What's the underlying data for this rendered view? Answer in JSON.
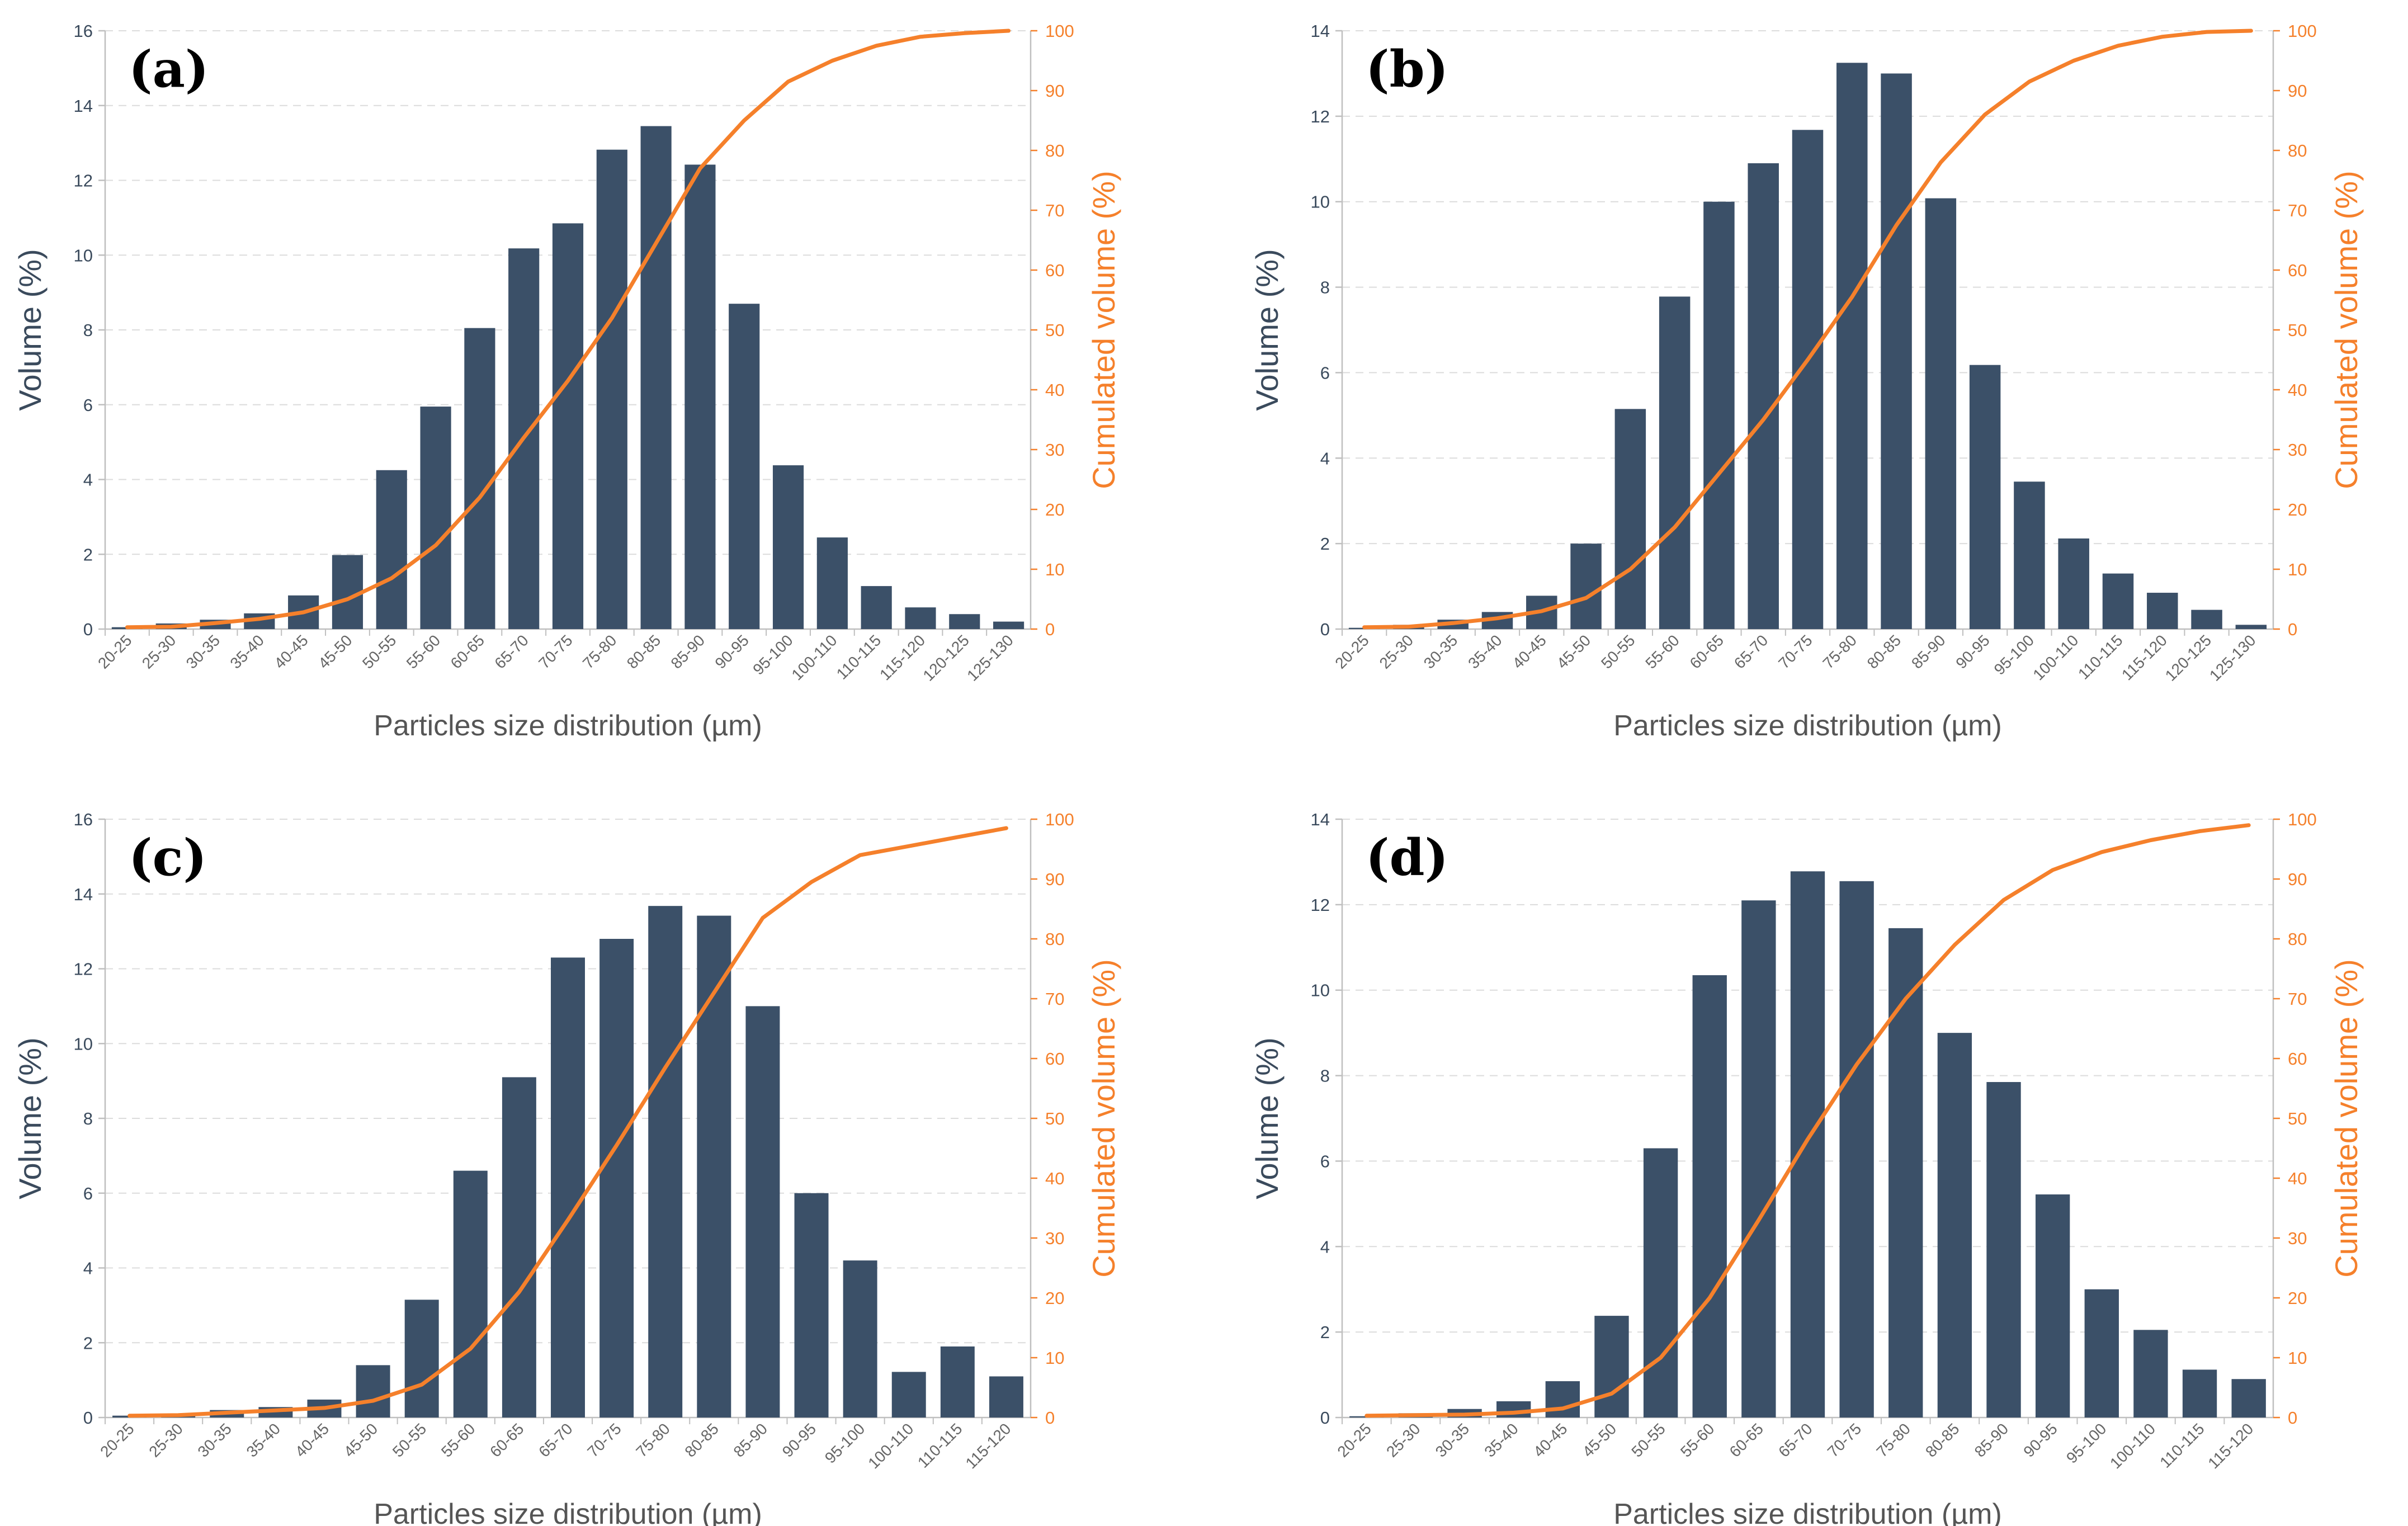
{
  "colors": {
    "bar": "#3b5068",
    "line": "#f5802b",
    "left_axis_text": "#3a4a5c",
    "grid": "#dcdcdc",
    "xlabel_text": "#555555"
  },
  "chart_data": [
    {
      "panel": "(a)",
      "type": "bar",
      "xlabel": "Particles size distribution (µm)",
      "ylabel": "Volume (%)",
      "y2label": "Cumulated volume (%)",
      "ylim": [
        0,
        16
      ],
      "yticks": [
        "0",
        "2",
        "4",
        "6",
        "8",
        "10",
        "12",
        "14",
        "16"
      ],
      "y2lim": [
        0,
        100
      ],
      "y2ticks": [
        "0",
        "10",
        "20",
        "30",
        "40",
        "50",
        "60",
        "70",
        "80",
        "90",
        "100"
      ],
      "categories": [
        "20-25",
        "25-30",
        "30-35",
        "35-40",
        "40-45",
        "45-50",
        "50-55",
        "55-60",
        "60-65",
        "65-70",
        "70-75",
        "75-80",
        "80-85",
        "85-90",
        "90-95",
        "95-100",
        "100-110",
        "110-115",
        "115-120",
        "120-125",
        "125-130"
      ],
      "series": [
        {
          "name": "Volume (%)",
          "axis": "left",
          "type": "bar",
          "values": [
            0.05,
            0.15,
            0.25,
            0.42,
            0.9,
            1.98,
            4.25,
            5.95,
            8.05,
            10.18,
            10.85,
            12.82,
            13.45,
            12.42,
            8.7,
            4.38,
            2.45,
            1.15,
            0.58,
            0.4,
            0.2
          ]
        },
        {
          "name": "Cumulated volume (%)",
          "axis": "right",
          "type": "line",
          "values": [
            0.3,
            0.4,
            1.0,
            1.7,
            2.8,
            5.0,
            8.5,
            14.0,
            22.0,
            32.0,
            41.5,
            52.0,
            64.5,
            77.0,
            85.0,
            91.5,
            95.0,
            97.5,
            99.0,
            99.6,
            100.0
          ]
        }
      ]
    },
    {
      "panel": "(b)",
      "type": "bar",
      "xlabel": "Particles size distribution (µm)",
      "ylabel": "Volume (%)",
      "y2label": "Cumulated volume (%)",
      "ylim": [
        0,
        14
      ],
      "yticks": [
        "0",
        "2",
        "4",
        "6",
        "8",
        "10",
        "12",
        "14"
      ],
      "y2lim": [
        0,
        100
      ],
      "y2ticks": [
        "0",
        "10",
        "20",
        "30",
        "40",
        "50",
        "60",
        "70",
        "80",
        "90",
        "100"
      ],
      "categories": [
        "20-25",
        "25-30",
        "30-35",
        "35-40",
        "40-45",
        "45-50",
        "50-55",
        "55-60",
        "60-65",
        "65-70",
        "70-75",
        "75-80",
        "80-85",
        "85-90",
        "90-95",
        "95-100",
        "100-110",
        "110-115",
        "115-120",
        "120-125",
        "125-130"
      ],
      "series": [
        {
          "name": "Volume (%)",
          "axis": "left",
          "type": "bar",
          "values": [
            0.03,
            0.1,
            0.22,
            0.4,
            0.78,
            2.0,
            5.15,
            7.78,
            10.0,
            10.9,
            11.68,
            13.25,
            13.0,
            10.08,
            6.18,
            3.45,
            2.12,
            1.3,
            0.85,
            0.45,
            0.1
          ]
        },
        {
          "name": "Cumulated volume (%)",
          "axis": "right",
          "type": "line",
          "values": [
            0.3,
            0.4,
            1.0,
            1.8,
            3.0,
            5.2,
            10.0,
            17.0,
            26.0,
            35.0,
            45.0,
            55.5,
            67.5,
            78.0,
            86.0,
            91.5,
            95.0,
            97.5,
            99.0,
            99.8,
            100.0
          ]
        }
      ]
    },
    {
      "panel": "(c)",
      "type": "bar",
      "xlabel": "Particles size distribution (µm)",
      "ylabel": "Volume (%)",
      "y2label": "Cumulated volume (%)",
      "ylim": [
        0,
        16
      ],
      "yticks": [
        "0",
        "2",
        "4",
        "6",
        "8",
        "10",
        "12",
        "14",
        "16"
      ],
      "y2lim": [
        0,
        100
      ],
      "y2ticks": [
        "0",
        "10",
        "20",
        "30",
        "40",
        "50",
        "60",
        "70",
        "80",
        "90",
        "100"
      ],
      "categories": [
        "20-25",
        "25-30",
        "30-35",
        "35-40",
        "40-45",
        "45-50",
        "50-55",
        "55-60",
        "60-65",
        "65-70",
        "70-75",
        "75-80",
        "80-85",
        "85-90",
        "90-95",
        "95-100",
        "100-110",
        "110-115",
        "115-120"
      ],
      "series": [
        {
          "name": "Volume (%)",
          "axis": "left",
          "type": "bar",
          "values": [
            0.05,
            0.1,
            0.2,
            0.28,
            0.48,
            1.4,
            3.15,
            6.6,
            9.1,
            12.3,
            12.8,
            13.68,
            13.42,
            11.0,
            6.0,
            4.2,
            1.22,
            1.9,
            1.1
          ]
        },
        {
          "name": "Cumulated volume (%)",
          "axis": "right",
          "type": "line",
          "values": [
            0.3,
            0.4,
            0.8,
            1.2,
            1.6,
            2.8,
            5.5,
            11.5,
            21.0,
            33.0,
            45.5,
            58.5,
            71.0,
            83.5,
            89.5,
            94.0,
            95.5,
            97.0,
            98.5
          ]
        }
      ]
    },
    {
      "panel": "(d)",
      "type": "bar",
      "xlabel": "Particles size distribution (µm)",
      "ylabel": "Volume (%)",
      "y2label": "Cumulated volume (%)",
      "ylim": [
        0,
        14
      ],
      "yticks": [
        "0",
        "2",
        "4",
        "6",
        "8",
        "10",
        "12",
        "14"
      ],
      "y2lim": [
        0,
        100
      ],
      "y2ticks": [
        "0",
        "10",
        "20",
        "30",
        "40",
        "50",
        "60",
        "70",
        "80",
        "90",
        "100"
      ],
      "categories": [
        "20-25",
        "25-30",
        "30-35",
        "35-40",
        "40-45",
        "45-50",
        "50-55",
        "55-60",
        "60-65",
        "65-70",
        "70-75",
        "75-80",
        "80-85",
        "85-90",
        "90-95",
        "95-100",
        "100-110",
        "110-115",
        "115-120"
      ],
      "series": [
        {
          "name": "Volume (%)",
          "axis": "left",
          "type": "bar",
          "values": [
            0.03,
            0.1,
            0.2,
            0.38,
            0.85,
            2.38,
            6.3,
            10.35,
            12.1,
            12.78,
            12.55,
            11.45,
            9.0,
            7.85,
            5.22,
            3.0,
            2.05,
            1.12,
            0.9
          ]
        },
        {
          "name": "Cumulated volume (%)",
          "axis": "right",
          "type": "line",
          "values": [
            0.3,
            0.4,
            0.5,
            0.8,
            1.5,
            4.0,
            10.0,
            20.0,
            33.0,
            46.5,
            59.0,
            70.0,
            79.0,
            86.5,
            91.5,
            94.5,
            96.5,
            98.0,
            99.0
          ]
        }
      ]
    }
  ]
}
